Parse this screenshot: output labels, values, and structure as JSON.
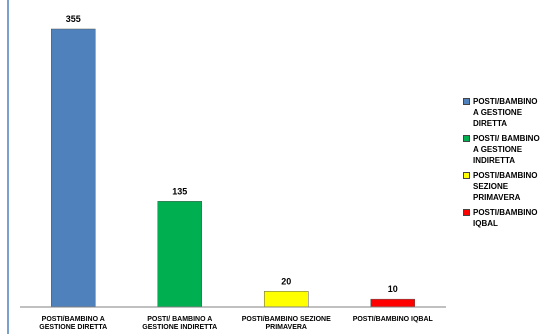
{
  "chart_data": {
    "type": "bar",
    "title": "",
    "xlabel": "",
    "ylabel": "",
    "ylim": [
      0,
      355
    ],
    "grid": false,
    "legend_position": "right",
    "categories": [
      "POSTI/BAMBINO A\nGESTIONE DIRETTA",
      "POSTI/ BAMBINO A\nGESTIONE INDIRETTA",
      "POSTI/BAMBINO SEZIONE\nPRIMAVERA",
      "POSTI/BAMBINO IQBAL"
    ],
    "values": [
      355,
      135,
      20,
      10
    ],
    "data_labels": [
      "355",
      "135",
      "20",
      "10"
    ],
    "colors": [
      "#4f81bd",
      "#00b050",
      "#ffff00",
      "#ff0000"
    ],
    "legend": [
      "POSTI/BAMBINO\nA GESTIONE\nDIRETTA",
      "POSTI/ BAMBINO\nA GESTIONE\nINDIRETTA",
      "POSTI/BAMBINO\nSEZIONE\nPRIMAVERA",
      "POSTI/BAMBINO\nIQBAL"
    ]
  }
}
